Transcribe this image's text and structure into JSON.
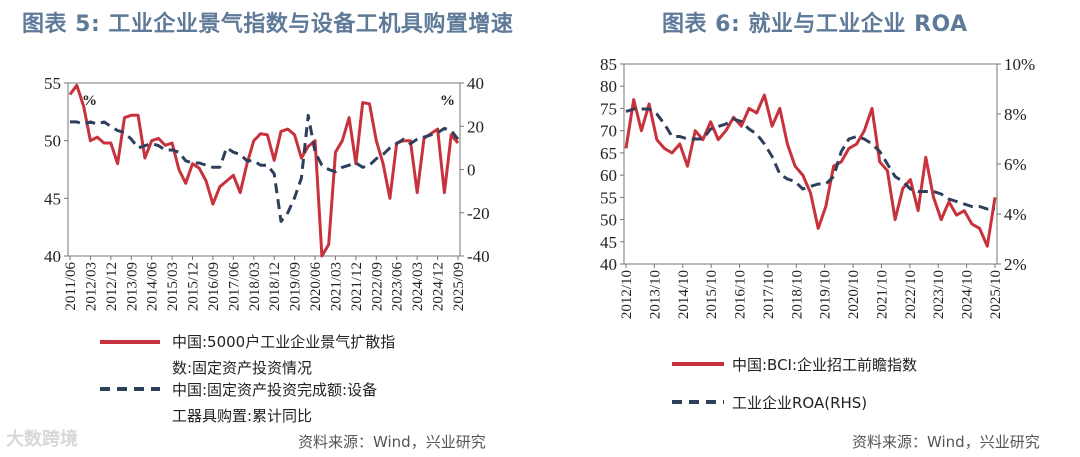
{
  "panel1": {
    "title": "图表 5:  工业企业景气指数与设备工机具购置增速",
    "source": "资料来源：Wind，兴业研究",
    "left_unit": "%",
    "right_unit": "%"
  },
  "panel2": {
    "title": "图表 6:  就业与工业企业 ROA",
    "source": "资料来源：Wind，兴业研究"
  },
  "watermark": "大数跨境",
  "chart_data": [
    {
      "type": "line",
      "title": "图表 5:  工业企业景气指数与设备工机具购置增速",
      "x_ticks": [
        "2011/06",
        "2012/03",
        "2012/12",
        "2013/09",
        "2014/06",
        "2015/03",
        "2015/12",
        "2016/09",
        "2017/06",
        "2018/03",
        "2018/12",
        "2019/09",
        "2020/06",
        "2021/03",
        "2021/12",
        "2022/09",
        "2023/06",
        "2024/03",
        "2024/12",
        "2025/09"
      ],
      "y_left": {
        "min": 40,
        "max": 55,
        "ticks": [
          40,
          45,
          50,
          55
        ]
      },
      "y_right": {
        "min": -40,
        "max": 40,
        "ticks": [
          -40,
          -20,
          0,
          20,
          40
        ]
      },
      "series": [
        {
          "name": "中国:5000户工业企业景气扩散指数:固定资产投资情况",
          "axis": "left",
          "color": "#c8323c",
          "style": "solid",
          "quarterly_values": [
            54,
            54.8,
            53,
            50,
            50.3,
            49.8,
            49.8,
            48,
            52,
            52.2,
            52.2,
            48.5,
            50,
            50.2,
            49.6,
            49.8,
            47.5,
            46.3,
            48,
            47.6,
            46.5,
            44.5,
            46,
            46.5,
            47,
            45.5,
            48,
            50,
            50.6,
            50.5,
            48.3,
            50.8,
            51,
            50.5,
            48.5,
            49.5,
            50,
            40,
            41,
            49,
            50,
            52,
            48,
            53.3,
            53.2,
            50,
            48,
            45,
            49.8,
            50,
            50,
            45.5,
            50.2,
            50.6,
            51,
            45.5,
            50.5,
            49.8
          ]
        },
        {
          "name": "中国:固定资产投资完成额:设备工器具购置:累计同比",
          "axis": "right",
          "color": "#2e3f5c",
          "style": "dashed",
          "quarterly_values": [
            22,
            22,
            21,
            22,
            21,
            22,
            20,
            18,
            17,
            14,
            10,
            11,
            12,
            11,
            9,
            9,
            8,
            4,
            3,
            3,
            2,
            1,
            1,
            10,
            8,
            7,
            4,
            4,
            2,
            2,
            -2,
            -24,
            -20,
            -13,
            -4,
            25,
            8,
            2,
            0,
            -1,
            1,
            2,
            3,
            1,
            2,
            5,
            7,
            10,
            12,
            14,
            12,
            14,
            15,
            16,
            17,
            19,
            18,
            14
          ]
        }
      ]
    },
    {
      "type": "line",
      "title": "图表 6:  就业与工业企业 ROA",
      "x_ticks": [
        "2012/10",
        "2013/10",
        "2014/10",
        "2015/10",
        "2016/10",
        "2017/10",
        "2018/10",
        "2019/10",
        "2020/10",
        "2021/10",
        "2022/10",
        "2023/10",
        "2024/10",
        "2025/10"
      ],
      "y_left": {
        "min": 40,
        "max": 85,
        "ticks": [
          40,
          45,
          50,
          55,
          60,
          65,
          70,
          75,
          80,
          85
        ]
      },
      "y_right": {
        "min": 2,
        "max": 10,
        "ticks": [
          "2%",
          "4%",
          "6%",
          "8%",
          "10%"
        ]
      },
      "series": [
        {
          "name": "中国:BCI:企业招工前瞻指数",
          "axis": "left",
          "color": "#c8323c",
          "style": "solid",
          "quarterly_values": [
            66,
            77,
            70,
            76,
            68,
            66,
            65,
            67,
            62,
            70,
            68,
            72,
            68,
            70,
            73,
            71,
            75,
            74,
            78,
            71,
            75,
            67,
            62,
            60,
            56,
            48,
            53,
            62,
            63,
            66,
            67,
            70,
            75,
            63,
            61,
            50,
            57,
            59,
            52,
            64,
            55,
            50,
            54,
            51,
            52,
            49,
            48,
            44,
            55
          ]
        },
        {
          "name": "工业企业ROA(RHS)",
          "axis": "right",
          "color": "#2e3f5c",
          "style": "dashed",
          "quarterly_values": [
            8.1,
            8.2,
            8.2,
            8.2,
            8,
            7.6,
            7.1,
            7.1,
            7,
            7,
            7,
            7.4,
            7.5,
            7.6,
            7.8,
            7.7,
            7.4,
            7.2,
            6.8,
            6.3,
            5.6,
            5.4,
            5.3,
            5.0,
            5.1,
            5.2,
            5.2,
            5.5,
            6.5,
            7.0,
            7.1,
            7.0,
            6.8,
            6.5,
            6.0,
            5.5,
            5.3,
            5.0,
            4.9,
            4.9,
            4.9,
            4.8,
            4.6,
            4.5,
            4.4,
            4.3,
            4.3,
            4.2,
            4.2
          ]
        }
      ]
    }
  ],
  "legend1": [
    {
      "line1": "中国:5000户工业企业景气扩散指",
      "line2": "数:固定资产投资情况"
    },
    {
      "line1": "中国:固定资产投资完成额:设备",
      "line2": "工器具购置:累计同比"
    }
  ],
  "legend2": [
    {
      "label": "中国:BCI:企业招工前瞻指数"
    },
    {
      "label": "工业企业ROA(RHS)"
    }
  ],
  "colors": {
    "red": "#c8323c",
    "navy": "#2e3f5c",
    "title": "#5f7a99"
  }
}
